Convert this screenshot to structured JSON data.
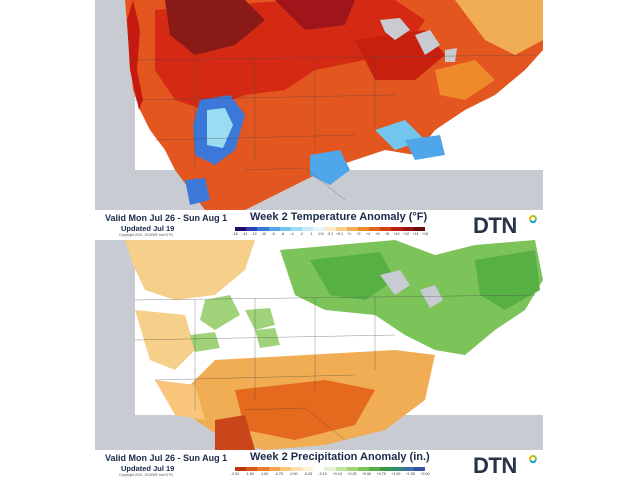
{
  "temperature_panel": {
    "valid": "Valid Mon Jul 26 - Sun Aug 1",
    "updated": "Updated Jul 19",
    "copyright": "Copyright 2021, ECMWF and DTN",
    "title": "Week 2 Temperature Anomaly (°F)",
    "logo": "DTN",
    "legend": {
      "colors": [
        "#1d0b6b",
        "#2a3fb0",
        "#3b78d8",
        "#4fa6e8",
        "#72c6ee",
        "#9adcf2",
        "#c3ecf7",
        "#e6f7fb",
        "#fbeac7",
        "#f6cf8a",
        "#f0ad54",
        "#ea8a2b",
        "#e2661a",
        "#d4420f",
        "#bb220d",
        "#96150e",
        "#6b0c0c"
      ],
      "ticks": [
        "-18",
        "-14",
        "-12",
        "-10",
        "-8",
        "-6",
        "-4",
        "-2",
        "-1",
        "-0.5",
        "-0.1",
        "+0.1",
        "+1",
        "+2",
        "+4",
        "+6",
        "+8",
        "+10",
        "+12",
        "+14",
        "+18"
      ]
    }
  },
  "precipitation_panel": {
    "valid": "Valid Mon Jul 26 - Sun Aug 1",
    "updated": "Updated Jul 19",
    "copyright": "Copyright 2021, ECMWF and DTN",
    "title": "Week 2 Precipitation Anomaly (in.)",
    "logo": "DTN",
    "legend": {
      "colors": [
        "#b63a0c",
        "#d8581a",
        "#ec7d2c",
        "#f4a34a",
        "#f8c57a",
        "#fbe1b0",
        "#fdf1d8",
        "#ffffff",
        "#e3f2cf",
        "#c2e3a0",
        "#9fd279",
        "#7cc35a",
        "#57b044",
        "#3b9a4a",
        "#2f8a76",
        "#3a6fa8",
        "#3552a0"
      ],
      "ticks": [
        "-2.00",
        "-1.50",
        "-1.00",
        "-0.75",
        "-0.50",
        "-0.25",
        "-0.10",
        "+0.10",
        "+0.25",
        "+0.50",
        "+0.75",
        "+1.00",
        "+1.50",
        "+2.00"
      ]
    }
  }
}
